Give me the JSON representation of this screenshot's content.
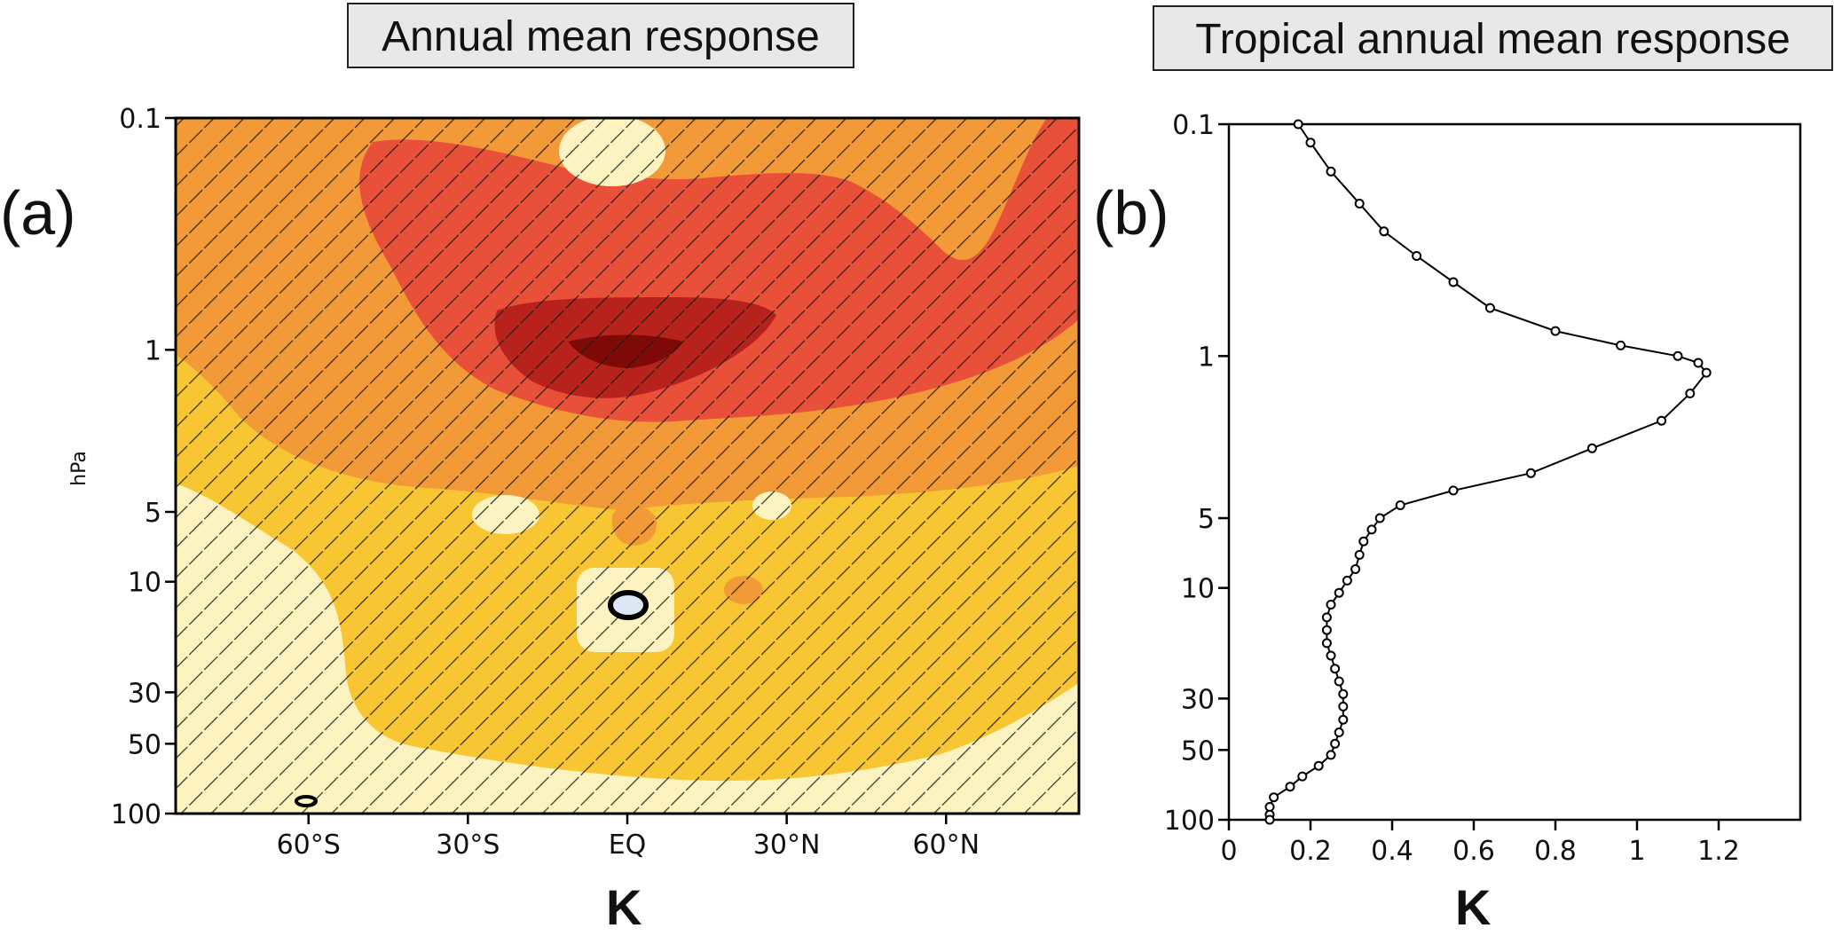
{
  "panels": {
    "a": {
      "label": "(a)",
      "title": "Annual mean response",
      "unit": "K"
    },
    "b": {
      "label": "(b)",
      "title": "Tropical annual mean response",
      "unit": "K"
    }
  },
  "chart_data": [
    {
      "type": "heatmap",
      "panel": "(a)",
      "title": "Annual mean response",
      "xlabel": "K",
      "ylabel": "hPa",
      "x_ticks": [
        "60°S",
        "30°S",
        "EQ",
        "30°N",
        "60°N"
      ],
      "x_tick_values": [
        -60,
        -30,
        0,
        30,
        60
      ],
      "xlim": [
        -85,
        85
      ],
      "y_ticks": [
        "0.1",
        "1",
        "5",
        "10",
        "30",
        "50",
        "100"
      ],
      "y_tick_values": [
        0.1,
        1,
        5,
        10,
        30,
        50,
        100
      ],
      "ylim": [
        100,
        0.1
      ],
      "y_scale": "log",
      "colors": [
        "#fdf3c0",
        "#f9c633",
        "#f39a38",
        "#e8503a",
        "#b8221c",
        "#7d0a06"
      ],
      "hatching": "statistically significant regions"
    },
    {
      "type": "line",
      "panel": "(b)",
      "title": "Tropical annual mean response",
      "xlabel": "K",
      "ylabel": "",
      "x_ticks": [
        "0",
        "0.2",
        "0.4",
        "0.6",
        "0.8",
        "1",
        "1.2"
      ],
      "xlim": [
        0,
        1.4
      ],
      "y_ticks": [
        "0.1",
        "1",
        "5",
        "10",
        "30",
        "50",
        "100"
      ],
      "y_tick_values": [
        0.1,
        1,
        5,
        10,
        30,
        50,
        100
      ],
      "ylim": [
        100,
        0.1
      ],
      "y_scale": "log",
      "series": [
        {
          "p": [
            0.1,
            0.12,
            0.16,
            0.22,
            0.29,
            0.37,
            0.48,
            0.62,
            0.78,
            0.9,
            1.0,
            1.07,
            1.18,
            1.45,
            1.9,
            2.5,
            3.2,
            3.8,
            4.4,
            5.0,
            5.6,
            6.3,
            7.2,
            8.3,
            9.3,
            10.5,
            11.8,
            13.4,
            15.2,
            17.3,
            19.6,
            22.3,
            25.3,
            28.7,
            32.5,
            37.0,
            42.0,
            47.0,
            52.5,
            58.5,
            65.0,
            72.0,
            80.0,
            88.0,
            95.0,
            100.0
          ],
          "values": [
            0.17,
            0.2,
            0.25,
            0.32,
            0.38,
            0.46,
            0.55,
            0.64,
            0.8,
            0.96,
            1.1,
            1.15,
            1.17,
            1.13,
            1.06,
            0.89,
            0.74,
            0.55,
            0.42,
            0.37,
            0.35,
            0.33,
            0.32,
            0.31,
            0.29,
            0.27,
            0.25,
            0.24,
            0.24,
            0.24,
            0.25,
            0.26,
            0.27,
            0.28,
            0.28,
            0.28,
            0.27,
            0.26,
            0.25,
            0.22,
            0.18,
            0.15,
            0.11,
            0.1,
            0.1,
            0.1
          ]
        }
      ]
    }
  ]
}
